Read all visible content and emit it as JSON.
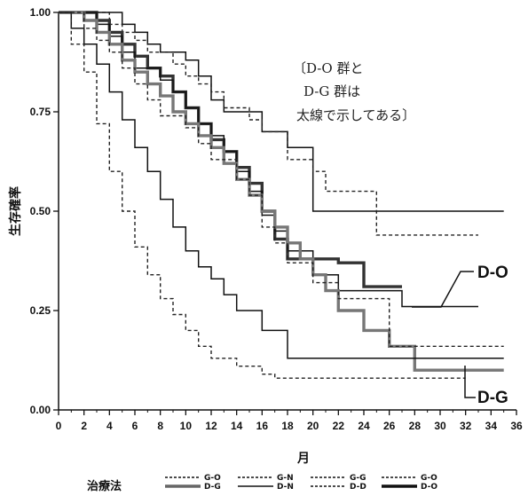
{
  "chart_data": {
    "type": "line",
    "ylabel": "生存確率",
    "xlabel": "月",
    "xlim": [
      0,
      36
    ],
    "ylim": [
      0,
      1.0
    ],
    "x_ticks": [
      "0",
      "2",
      "4",
      "6",
      "8",
      "10",
      "12",
      "14",
      "16",
      "18",
      "20",
      "22",
      "24",
      "26",
      "28",
      "30",
      "32",
      "34",
      "36"
    ],
    "y_ticks": [
      "0.00",
      "0.25",
      "0.50",
      "0.75",
      "1.00"
    ],
    "annotation": [
      "〔D-O 群と",
      "D-G 群は",
      "太線で示してある〕"
    ],
    "callouts": [
      "D-O",
      "D-G"
    ],
    "legend": {
      "title": "治療法",
      "pairs": [
        {
          "top": "G-O",
          "bottom": "D-G"
        },
        {
          "top": "G-N",
          "bottom": "D-N"
        },
        {
          "top": "G-G",
          "bottom": "D-D"
        },
        {
          "top": "G-O",
          "bottom": "D-O"
        }
      ]
    },
    "series": [
      {
        "label": "D-N upper",
        "style": "solid-thin",
        "color": "#111111",
        "points": [
          [
            0,
            1
          ],
          [
            4,
            1
          ],
          [
            5,
            0.97
          ],
          [
            6,
            0.95
          ],
          [
            7,
            0.92
          ],
          [
            8,
            0.9
          ],
          [
            10,
            0.88
          ],
          [
            11,
            0.84
          ],
          [
            12,
            0.78
          ],
          [
            13,
            0.75
          ],
          [
            16,
            0.7
          ],
          [
            18,
            0.66
          ],
          [
            20,
            0.6
          ],
          [
            20,
            0.5
          ],
          [
            35,
            0.5
          ]
        ]
      },
      {
        "label": "D-D upper",
        "style": "dashed",
        "color": "#222222",
        "points": [
          [
            0,
            1
          ],
          [
            3,
            1
          ],
          [
            4,
            0.97
          ],
          [
            5,
            0.95
          ],
          [
            6,
            0.93
          ],
          [
            7,
            0.9
          ],
          [
            9,
            0.87
          ],
          [
            10,
            0.84
          ],
          [
            11,
            0.82
          ],
          [
            12,
            0.8
          ],
          [
            13,
            0.76
          ],
          [
            15,
            0.73
          ],
          [
            16,
            0.7
          ],
          [
            18,
            0.63
          ],
          [
            20,
            0.6
          ],
          [
            21,
            0.55
          ],
          [
            25,
            0.55
          ],
          [
            25,
            0.44
          ],
          [
            33,
            0.44
          ]
        ]
      },
      {
        "label": "D-O",
        "style": "solid-thick",
        "color": "#333333",
        "points": [
          [
            0,
            1
          ],
          [
            3,
            0.98
          ],
          [
            4,
            0.95
          ],
          [
            5,
            0.92
          ],
          [
            6,
            0.89
          ],
          [
            7,
            0.86
          ],
          [
            8,
            0.84
          ],
          [
            9,
            0.8
          ],
          [
            10,
            0.76
          ],
          [
            11,
            0.72
          ],
          [
            12,
            0.68
          ],
          [
            13,
            0.65
          ],
          [
            14,
            0.61
          ],
          [
            15,
            0.57
          ],
          [
            16,
            0.5
          ],
          [
            17,
            0.43
          ],
          [
            18,
            0.38
          ],
          [
            22,
            0.37
          ],
          [
            24,
            0.31
          ],
          [
            27,
            0.31
          ]
        ]
      },
      {
        "label": "G-O",
        "style": "solid-thin",
        "color": "#111111",
        "points": [
          [
            0,
            1
          ],
          [
            3,
            0.97
          ],
          [
            4,
            0.94
          ],
          [
            5,
            0.9
          ],
          [
            6,
            0.86
          ],
          [
            8,
            0.83
          ],
          [
            9,
            0.8
          ],
          [
            10,
            0.76
          ],
          [
            11,
            0.72
          ],
          [
            12,
            0.69
          ],
          [
            13,
            0.65
          ],
          [
            14,
            0.6
          ],
          [
            15,
            0.55
          ],
          [
            16,
            0.49
          ],
          [
            17,
            0.45
          ],
          [
            18,
            0.4
          ],
          [
            20,
            0.34
          ],
          [
            22,
            0.3
          ],
          [
            27,
            0.3
          ],
          [
            27,
            0.26
          ],
          [
            33,
            0.26
          ]
        ]
      },
      {
        "label": "D-G",
        "style": "solid-thick",
        "color": "#777777",
        "points": [
          [
            0,
            1
          ],
          [
            2,
            0.98
          ],
          [
            3,
            0.95
          ],
          [
            4,
            0.92
          ],
          [
            5,
            0.88
          ],
          [
            6,
            0.85
          ],
          [
            7,
            0.82
          ],
          [
            8,
            0.79
          ],
          [
            9,
            0.75
          ],
          [
            10,
            0.72
          ],
          [
            11,
            0.69
          ],
          [
            12,
            0.66
          ],
          [
            13,
            0.62
          ],
          [
            14,
            0.58
          ],
          [
            15,
            0.54
          ],
          [
            16,
            0.5
          ],
          [
            17,
            0.46
          ],
          [
            18,
            0.42
          ],
          [
            19,
            0.38
          ],
          [
            20,
            0.34
          ],
          [
            21,
            0.3
          ],
          [
            22,
            0.25
          ],
          [
            24,
            0.2
          ],
          [
            26,
            0.16
          ],
          [
            28,
            0.16
          ],
          [
            28,
            0.1
          ],
          [
            35,
            0.1
          ]
        ]
      },
      {
        "label": "G-G",
        "style": "dashed",
        "color": "#222222",
        "points": [
          [
            0,
            1
          ],
          [
            2,
            0.96
          ],
          [
            3,
            0.93
          ],
          [
            4,
            0.9
          ],
          [
            5,
            0.86
          ],
          [
            6,
            0.82
          ],
          [
            7,
            0.78
          ],
          [
            8,
            0.74
          ],
          [
            10,
            0.71
          ],
          [
            11,
            0.67
          ],
          [
            12,
            0.63
          ],
          [
            14,
            0.58
          ],
          [
            15,
            0.54
          ],
          [
            16,
            0.46
          ],
          [
            17,
            0.42
          ],
          [
            18,
            0.37
          ],
          [
            20,
            0.32
          ],
          [
            22,
            0.28
          ],
          [
            26,
            0.2
          ],
          [
            26,
            0.16
          ],
          [
            35,
            0.16
          ]
        ]
      },
      {
        "label": "G-N",
        "style": "solid-thin",
        "color": "#111111",
        "points": [
          [
            0,
            1
          ],
          [
            1,
            0.96
          ],
          [
            2,
            0.92
          ],
          [
            3,
            0.87
          ],
          [
            4,
            0.8
          ],
          [
            5,
            0.73
          ],
          [
            6,
            0.66
          ],
          [
            7,
            0.6
          ],
          [
            8,
            0.53
          ],
          [
            9,
            0.46
          ],
          [
            10,
            0.4
          ],
          [
            11,
            0.36
          ],
          [
            12,
            0.33
          ],
          [
            13,
            0.29
          ],
          [
            14,
            0.25
          ],
          [
            16,
            0.2
          ],
          [
            18,
            0.15
          ],
          [
            18,
            0.13
          ],
          [
            35,
            0.13
          ]
        ]
      },
      {
        "label": "G-D",
        "style": "dashed",
        "color": "#222222",
        "points": [
          [
            0,
            1
          ],
          [
            1,
            0.92
          ],
          [
            2,
            0.85
          ],
          [
            3,
            0.72
          ],
          [
            4,
            0.6
          ],
          [
            5,
            0.5
          ],
          [
            6,
            0.41
          ],
          [
            7,
            0.34
          ],
          [
            8,
            0.28
          ],
          [
            9,
            0.24
          ],
          [
            10,
            0.2
          ],
          [
            11,
            0.16
          ],
          [
            12,
            0.13
          ],
          [
            14,
            0.11
          ],
          [
            16,
            0.09
          ],
          [
            17,
            0.08
          ],
          [
            32,
            0.08
          ]
        ]
      }
    ]
  }
}
